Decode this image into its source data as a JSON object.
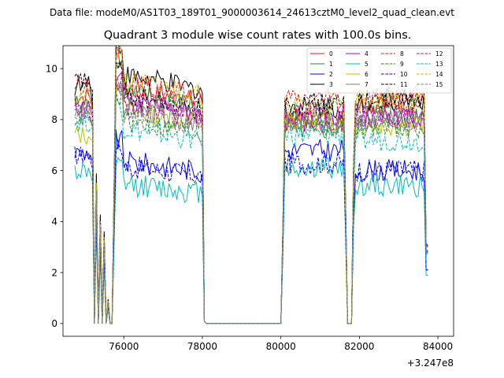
{
  "header": {
    "data_file": "Data file: modeM0/AS1T03_189T01_9000003614_24613cztM0_level2_quad_clean.evt"
  },
  "chart_data": {
    "type": "line",
    "title": "Quadrant 3 module wise count rates with 100.0s bins.",
    "xlabel": "",
    "ylabel": "",
    "x_offset_label": "+3.247e8",
    "xlim": [
      74450,
      84400
    ],
    "ylim": [
      -0.5,
      10.9
    ],
    "xticks": [
      76000,
      78000,
      80000,
      82000,
      84000
    ],
    "xtick_labels": [
      "76000",
      "78000",
      "80000",
      "82000",
      "84000"
    ],
    "yticks": [
      0,
      2,
      4,
      6,
      8,
      10
    ],
    "ytick_labels": [
      "0",
      "2",
      "4",
      "6",
      "8",
      "10"
    ],
    "grid": false,
    "legend_position": "top-right",
    "x_range_note": "time offsets from 3.247e8 s; bins every 100 s",
    "segments": [
      {
        "start": 74750,
        "end": 75650,
        "description": "ramp down into SAA"
      },
      {
        "start": 75650,
        "end": 75750,
        "description": "zero gap"
      },
      {
        "start": 75750,
        "end": 78050,
        "description": "active interval"
      },
      {
        "start": 78050,
        "end": 80050,
        "description": "no counts"
      },
      {
        "start": 80050,
        "end": 81650,
        "description": "active interval"
      },
      {
        "start": 81650,
        "end": 81850,
        "description": "zero gap"
      },
      {
        "start": 81850,
        "end": 83750,
        "description": "active interval"
      }
    ],
    "series": [
      {
        "name": "0",
        "color": "#e41a1c",
        "dash": "solid",
        "levels": [
          8.9,
          9.3,
          8.0,
          8.6
        ]
      },
      {
        "name": "1",
        "color": "#2a8a2a",
        "dash": "solid",
        "levels": [
          8.6,
          9.1,
          7.6,
          8.2
        ]
      },
      {
        "name": "2",
        "color": "#0000ff",
        "dash": "solid",
        "levels": [
          6.7,
          6.4,
          6.8,
          6.0
        ]
      },
      {
        "name": "3",
        "color": "#000000",
        "dash": "solid",
        "levels": [
          9.3,
          9.8,
          8.5,
          8.8
        ]
      },
      {
        "name": "4",
        "color": "#bf00bf",
        "dash": "solid",
        "levels": [
          8.5,
          8.8,
          7.9,
          8.1
        ]
      },
      {
        "name": "5",
        "color": "#00bfbf",
        "dash": "solid",
        "levels": [
          6.0,
          5.5,
          6.1,
          5.4
        ]
      },
      {
        "name": "6",
        "color": "#bfbf00",
        "dash": "solid",
        "levels": [
          7.4,
          8.4,
          8.0,
          7.8
        ]
      },
      {
        "name": "7",
        "color": "#808080",
        "dash": "solid",
        "levels": [
          8.2,
          8.5,
          7.9,
          8.0
        ]
      },
      {
        "name": "8",
        "color": "#e41a1c",
        "dash": "dashed",
        "levels": [
          9.4,
          9.5,
          8.8,
          8.9
        ]
      },
      {
        "name": "9",
        "color": "#2a8a2a",
        "dash": "dashed",
        "levels": [
          8.1,
          8.0,
          7.9,
          7.7
        ]
      },
      {
        "name": "10",
        "color": "#0000ff",
        "dash": "dashed",
        "levels": [
          6.6,
          6.2,
          6.3,
          6.0
        ]
      },
      {
        "name": "11",
        "color": "#000000",
        "dash": "dashed",
        "levels": [
          9.5,
          9.0,
          8.6,
          8.7
        ]
      },
      {
        "name": "12",
        "color": "#bf00bf",
        "dash": "dashed",
        "levels": [
          8.3,
          8.6,
          8.2,
          8.1
        ]
      },
      {
        "name": "13",
        "color": "#00bfbf",
        "dash": "dashed",
        "levels": [
          7.9,
          7.7,
          7.4,
          7.2
        ]
      },
      {
        "name": "14",
        "color": "#bfbf00",
        "dash": "dashed",
        "levels": [
          8.9,
          9.6,
          8.5,
          8.7
        ]
      },
      {
        "name": "15",
        "color": "#808080",
        "dash": "dashed",
        "levels": [
          8.4,
          8.4,
          7.8,
          7.9
        ]
      }
    ]
  }
}
